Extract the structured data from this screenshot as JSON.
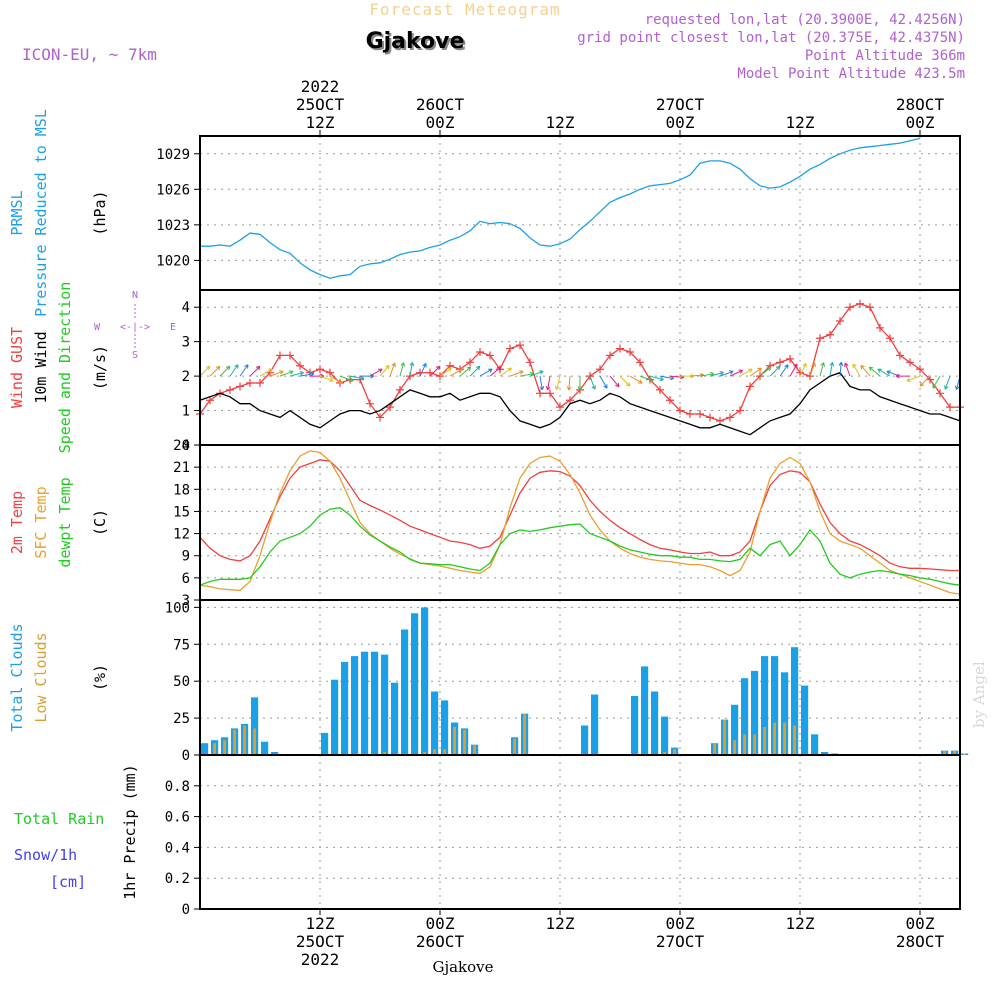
{
  "header": {
    "super_title": "Forecast Meteogram",
    "title": "Gjakove",
    "model": "ICON-EU, ~ 7km",
    "requested": "requested lon,lat (20.3900E, 42.4256N)",
    "grid": "grid point closest lon,lat (20.375E, 42.4375N)",
    "point_alt": "Point Altitude 366m",
    "model_alt": "Model Point Altitude 423.5m",
    "footer_city": "Gjakove",
    "credit": "by Angel"
  },
  "colors": {
    "pressure": "#1ba0e8",
    "gust": "#f04040",
    "wind10": "#000000",
    "sfc_temp": "#e8a030",
    "temp2m": "#f04040",
    "dewpt": "#20cc20",
    "total_clouds": "#1ba0e8",
    "low_clouds": "#d8a030",
    "rain": "#20cc20",
    "snow": "#4040f0",
    "meta": "#b060d0",
    "super_title": "#f5d090"
  },
  "time_axis": {
    "top_labels": [
      {
        "t": 12,
        "lines": [
          "2022",
          "25OCT",
          "12Z"
        ]
      },
      {
        "t": 24,
        "lines": [
          "26OCT",
          "00Z"
        ]
      },
      {
        "t": 36,
        "lines": [
          "12Z"
        ]
      },
      {
        "t": 48,
        "lines": [
          "27OCT",
          "00Z"
        ]
      },
      {
        "t": 60,
        "lines": [
          "12Z"
        ]
      },
      {
        "t": 72,
        "lines": [
          "28OCT",
          "00Z"
        ]
      }
    ],
    "bottom_labels": [
      {
        "t": 12,
        "lines": [
          "12Z",
          "25OCT",
          "2022"
        ]
      },
      {
        "t": 24,
        "lines": [
          "00Z",
          "26OCT"
        ]
      },
      {
        "t": 36,
        "lines": [
          "12Z"
        ]
      },
      {
        "t": 48,
        "lines": [
          "00Z",
          "27OCT"
        ]
      },
      {
        "t": 60,
        "lines": [
          "12Z"
        ]
      },
      {
        "t": 72,
        "lines": [
          "00Z",
          "28OCT"
        ]
      }
    ]
  },
  "chart_data": [
    {
      "type": "line",
      "id": "pressure",
      "ylabel_lines": [
        "PRMSL",
        "Pressure Reduced to MSL"
      ],
      "unit": "(hPa)",
      "x_range": [
        0,
        76
      ],
      "ylim": [
        1017.5,
        1030.5
      ],
      "yticks": [
        1020,
        1023,
        1026,
        1029
      ],
      "series": [
        {
          "name": "PRMSL",
          "color_key": "pressure",
          "values": [
            1021.2,
            1021.2,
            1021.3,
            1021.2,
            1021.7,
            1022.3,
            1022.2,
            1021.5,
            1020.9,
            1020.6,
            1019.8,
            1019.2,
            1018.8,
            1018.5,
            1018.7,
            1018.8,
            1019.5,
            1019.7,
            1019.8,
            1020.1,
            1020.5,
            1020.7,
            1020.8,
            1021.1,
            1021.3,
            1021.7,
            1022.0,
            1022.5,
            1023.3,
            1023.1,
            1023.2,
            1023.1,
            1022.7,
            1021.9,
            1021.3,
            1021.2,
            1021.4,
            1021.8,
            1022.6,
            1023.3,
            1024.1,
            1024.9,
            1025.3,
            1025.6,
            1026.0,
            1026.3,
            1026.4,
            1026.5,
            1026.8,
            1027.2,
            1028.2,
            1028.4,
            1028.4,
            1028.2,
            1027.7,
            1026.9,
            1026.3,
            1026.1,
            1026.2,
            1026.6,
            1027.1,
            1027.7,
            1028.1,
            1028.6,
            1029.0,
            1029.3,
            1029.5,
            1029.6,
            1029.7,
            1029.8,
            1029.9,
            1030.1,
            1030.3
          ]
        }
      ]
    },
    {
      "type": "line",
      "id": "wind",
      "ylabel_lines": [
        "Wind GUST",
        "10m Wind",
        "Speed and Direction"
      ],
      "unit": "(m/s)",
      "compass": {
        "n": "N",
        "s": "S",
        "w": "W",
        "e": "E",
        "line": "<-|->"
      },
      "x_range": [
        0,
        76
      ],
      "ylim": [
        0,
        4.5
      ],
      "yticks": [
        0,
        1,
        2,
        3,
        4
      ],
      "series": [
        {
          "name": "Wind GUST",
          "color_key": "gust",
          "marker": "plus",
          "values": [
            0.9,
            1.3,
            1.5,
            1.6,
            1.7,
            1.8,
            1.8,
            2.1,
            2.6,
            2.6,
            2.3,
            2.1,
            2.2,
            2.1,
            1.8,
            1.9,
            1.9,
            1.2,
            0.8,
            1.1,
            1.6,
            2.0,
            2.1,
            2.1,
            2.0,
            2.3,
            2.2,
            2.4,
            2.7,
            2.6,
            2.2,
            2.8,
            2.9,
            2.4,
            1.5,
            1.5,
            1.1,
            1.3,
            1.6,
            2.0,
            2.2,
            2.6,
            2.8,
            2.7,
            2.4,
            1.9,
            1.6,
            1.3,
            1.0,
            0.9,
            0.9,
            0.8,
            0.7,
            0.8,
            1.0,
            1.7,
            2.0,
            2.3,
            2.4,
            2.5,
            2.1,
            2.0,
            3.1,
            3.2,
            3.6,
            4.0,
            4.1,
            4.0,
            3.4,
            3.1,
            2.6,
            2.4,
            2.2,
            1.9,
            1.5,
            1.1,
            1.1
          ]
        },
        {
          "name": "10m Wind",
          "color_key": "wind10",
          "values": [
            1.3,
            1.4,
            1.5,
            1.4,
            1.2,
            1.2,
            1.0,
            0.9,
            0.8,
            1.0,
            0.8,
            0.6,
            0.5,
            0.7,
            0.9,
            1.0,
            1.0,
            0.9,
            1.0,
            1.2,
            1.4,
            1.6,
            1.5,
            1.4,
            1.4,
            1.5,
            1.3,
            1.4,
            1.5,
            1.5,
            1.4,
            1.0,
            0.7,
            0.6,
            0.5,
            0.6,
            0.8,
            1.2,
            1.3,
            1.2,
            1.3,
            1.5,
            1.4,
            1.2,
            1.1,
            1.0,
            0.9,
            0.8,
            0.7,
            0.6,
            0.5,
            0.5,
            0.6,
            0.5,
            0.4,
            0.3,
            0.5,
            0.7,
            0.8,
            0.9,
            1.2,
            1.6,
            1.8,
            2.0,
            2.1,
            1.7,
            1.6,
            1.6,
            1.4,
            1.3,
            1.2,
            1.1,
            1.0,
            0.9,
            0.9,
            0.8,
            0.7
          ]
        }
      ],
      "arrows_deg": [
        225,
        225,
        225,
        215,
        215,
        225,
        240,
        250,
        250,
        255,
        260,
        270,
        290,
        300,
        290,
        280,
        270,
        240,
        220,
        200,
        195,
        190,
        205,
        225,
        235,
        240,
        230,
        225,
        240,
        230,
        235,
        250,
        260,
        250,
        350,
        10,
        15,
        5,
        0,
        340,
        330,
        320,
        315,
        300,
        290,
        285,
        280,
        275,
        270,
        265,
        260,
        255,
        250,
        245,
        240,
        235,
        230,
        225,
        215,
        210,
        205,
        200,
        195,
        190,
        185,
        160,
        150,
        140,
        130,
        120,
        110,
        90,
        70,
        45,
        30,
        20,
        15
      ]
    },
    {
      "type": "line",
      "id": "temp",
      "ylabel_lines": [
        "2m Temp",
        "SFC Temp",
        "dewpt Temp"
      ],
      "unit": "(C)",
      "x_range": [
        0,
        76
      ],
      "ylim": [
        3,
        24
      ],
      "yticks": [
        3,
        6,
        9,
        12,
        15,
        18,
        21,
        24
      ],
      "series": [
        {
          "name": "2m Temp",
          "color_key": "temp2m",
          "values": [
            11.5,
            10.0,
            9.0,
            8.5,
            8.3,
            9.0,
            11.0,
            14.0,
            17.0,
            19.5,
            21.0,
            21.5,
            22.0,
            21.8,
            20.5,
            18.5,
            16.5,
            15.8,
            15.2,
            14.5,
            13.8,
            13.0,
            12.5,
            12.0,
            11.5,
            11.0,
            10.8,
            10.5,
            10.0,
            10.3,
            11.5,
            14.5,
            17.5,
            19.5,
            20.3,
            20.5,
            20.4,
            19.8,
            18.5,
            16.5,
            15.0,
            13.8,
            12.8,
            12.0,
            11.2,
            10.5,
            10.0,
            9.8,
            9.5,
            9.3,
            9.3,
            9.5,
            9.0,
            9.0,
            9.5,
            11.0,
            15.0,
            18.5,
            20.0,
            20.5,
            20.3,
            19.0,
            16.0,
            13.5,
            12.0,
            11.0,
            10.5,
            9.8,
            9.0,
            8.0,
            7.5,
            7.3,
            7.3,
            7.2,
            7.1,
            7.0,
            7.0
          ]
        },
        {
          "name": "SFC Temp",
          "color_key": "sfc_temp",
          "values": [
            5.0,
            4.8,
            4.5,
            4.4,
            4.3,
            5.5,
            9.0,
            13.5,
            17.5,
            20.5,
            22.5,
            23.2,
            23.0,
            21.8,
            19.5,
            16.5,
            13.5,
            12.0,
            11.0,
            10.0,
            9.2,
            8.6,
            8.0,
            7.8,
            7.6,
            7.3,
            7.0,
            6.8,
            6.6,
            7.5,
            10.5,
            15.5,
            19.5,
            21.5,
            22.3,
            22.5,
            21.8,
            20.0,
            17.5,
            14.5,
            12.5,
            11.0,
            10.0,
            9.3,
            8.8,
            8.5,
            8.3,
            8.2,
            8.0,
            7.8,
            7.8,
            7.5,
            7.0,
            6.3,
            7.0,
            9.5,
            15.0,
            19.5,
            21.5,
            22.3,
            21.5,
            19.0,
            15.0,
            12.0,
            11.0,
            10.5,
            10.0,
            9.0,
            8.0,
            7.0,
            6.5,
            6.0,
            5.5,
            5.0,
            4.5,
            4.0,
            3.8
          ]
        },
        {
          "name": "dewpt Temp",
          "color_key": "dewpt",
          "values": [
            5.0,
            5.5,
            5.8,
            5.8,
            5.8,
            6.0,
            7.5,
            9.5,
            11.0,
            11.5,
            12.0,
            13.0,
            14.5,
            15.3,
            15.5,
            14.5,
            13.0,
            11.8,
            11.0,
            10.2,
            9.5,
            8.5,
            8.0,
            7.9,
            7.8,
            7.8,
            7.5,
            7.2,
            7.0,
            8.0,
            10.5,
            12.0,
            12.5,
            12.3,
            12.5,
            12.8,
            13.0,
            13.2,
            13.3,
            12.0,
            11.5,
            11.0,
            10.3,
            9.8,
            9.5,
            9.2,
            9.0,
            9.0,
            8.8,
            8.8,
            8.5,
            8.5,
            8.3,
            8.2,
            8.5,
            10.0,
            9.0,
            10.5,
            11.0,
            9.0,
            10.5,
            12.5,
            11.0,
            8.0,
            6.5,
            6.0,
            6.5,
            6.8,
            7.0,
            6.8,
            6.5,
            6.3,
            6.0,
            5.8,
            5.5,
            5.2,
            5.0
          ]
        }
      ]
    },
    {
      "type": "bar",
      "id": "clouds",
      "ylabel_lines": [
        "Total Clouds",
        "Low Clouds"
      ],
      "unit": "(%)",
      "x_range": [
        0,
        76
      ],
      "ylim": [
        0,
        105
      ],
      "yticks": [
        0,
        25,
        50,
        75,
        100
      ],
      "series": [
        {
          "name": "Total Clouds",
          "color_key": "total_clouds",
          "values": [
            8,
            10,
            12,
            18,
            21,
            39,
            9,
            2,
            0,
            0,
            0,
            0,
            15,
            51,
            63,
            67,
            70,
            70,
            68,
            49,
            85,
            96,
            100,
            43,
            37,
            22,
            18,
            7,
            0,
            0,
            0,
            12,
            28,
            0,
            0,
            0,
            0,
            0,
            20,
            41,
            0,
            0,
            0,
            40,
            60,
            43,
            26,
            5,
            0,
            0,
            0,
            8,
            24,
            34,
            52,
            57,
            67,
            67,
            56,
            73,
            47,
            14,
            2,
            1,
            0,
            0,
            0,
            0,
            0,
            0,
            0,
            0,
            0,
            0,
            3,
            3,
            1,
            0
          ]
        },
        {
          "name": "Low Clouds",
          "color_key": "low_clouds",
          "values": [
            0,
            8,
            10,
            17,
            20,
            18,
            0,
            0,
            0,
            0,
            0,
            0,
            0,
            0,
            0,
            0,
            0,
            0,
            2,
            0,
            0,
            0,
            2,
            4,
            4,
            19,
            17,
            7,
            0,
            0,
            0,
            11,
            28,
            0,
            0,
            0,
            0,
            0,
            0,
            0,
            0,
            0,
            0,
            0,
            0,
            0,
            2,
            4,
            0,
            0,
            0,
            8,
            24,
            10,
            14,
            14,
            19,
            22,
            22,
            20,
            0,
            0,
            0,
            0,
            0,
            0,
            0,
            0,
            0,
            0,
            0,
            0,
            0,
            0,
            3,
            3,
            1,
            0
          ]
        }
      ]
    },
    {
      "type": "bar",
      "id": "precip",
      "ylabel_lines": [
        "1hr Precip (mm)"
      ],
      "left_labels": [
        {
          "text": "Total  Rain",
          "color_key": "rain"
        },
        {
          "text": "Snow/1h",
          "color_key": "snow"
        },
        {
          "text": "[cm]",
          "color_key": "snow"
        }
      ],
      "x_range": [
        0,
        76
      ],
      "ylim": [
        0,
        1
      ],
      "yticks": [
        0,
        0.2,
        0.4,
        0.6,
        0.8
      ],
      "series": [
        {
          "name": "Total Rain",
          "color_key": "rain",
          "values": []
        },
        {
          "name": "Snow/1h",
          "color_key": "snow",
          "values": []
        }
      ]
    }
  ]
}
